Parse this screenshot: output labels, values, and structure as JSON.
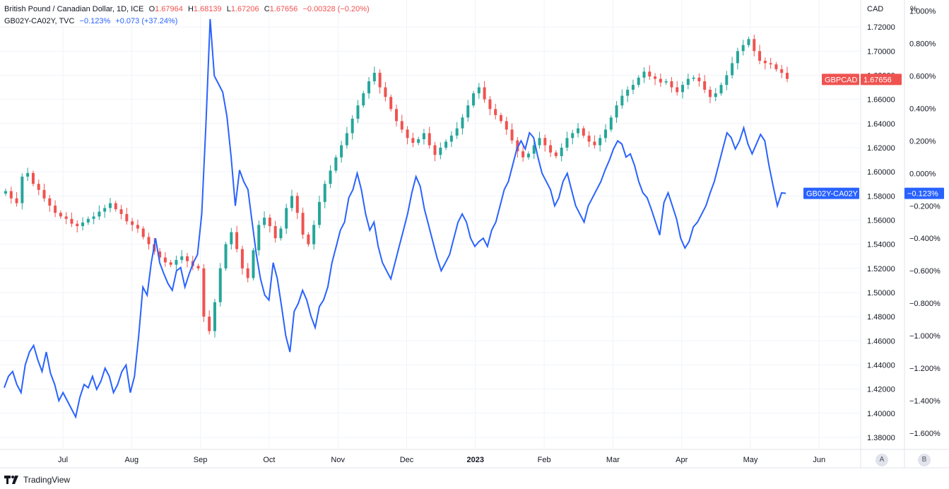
{
  "legend": {
    "main_title": "British Pound / Canadian Dollar, 1D, ICE",
    "open_label": "O",
    "open": "1.67964",
    "high_label": "H",
    "high": "1.68139",
    "low_label": "L",
    "low": "1.67206",
    "close_label": "C",
    "close": "1.67656",
    "change": "−0.00328 (−0.20%)",
    "series2_title": "GB02Y-CA02Y, TVC",
    "series2_value": "−0.123%",
    "series2_change": "+0.073 (+37.24%)"
  },
  "axes": {
    "right_unit": "CAD",
    "far_right_unit": "%",
    "scale_a": "A",
    "scale_b": "B"
  },
  "brand": "TradingView",
  "colors": {
    "up": "#26a69a",
    "down": "#ef5350",
    "spread": "#2962ff",
    "grid": "#f0f3fa"
  },
  "chart_data": {
    "type": "line",
    "x_tick_labels": [
      "Jul",
      "Aug",
      "Sep",
      "Oct",
      "Nov",
      "Dec",
      "2023",
      "Feb",
      "Mar",
      "Apr",
      "May",
      "Jun"
    ],
    "y_ticks_cad": [
      "1.72000",
      "1.70000",
      "1.68000",
      "1.66000",
      "1.64000",
      "1.62000",
      "1.60000",
      "1.58000",
      "1.56000",
      "1.54000",
      "1.52000",
      "1.50000",
      "1.48000",
      "1.46000",
      "1.44000",
      "1.42000",
      "1.40000",
      "1.38000"
    ],
    "y_ticks_pct": [
      "1.000%",
      "0.800%",
      "0.600%",
      "0.400%",
      "0.200%",
      "0.000%",
      "−0.200%",
      "−0.400%",
      "−0.600%",
      "−0.800%",
      "−1.000%",
      "−1.200%",
      "−1.400%",
      "−1.600%"
    ],
    "ylim_cad": [
      1.37,
      1.74
    ],
    "ylim_pct": [
      -1.7,
      1.05
    ],
    "series": [
      {
        "name": "GBPCAD",
        "axis": "CAD",
        "type": "candlestick",
        "last_label": "GBPCAD",
        "last_value": "1.67656",
        "values": [
          1.584,
          1.578,
          1.574,
          1.596,
          1.599,
          1.59,
          1.585,
          1.578,
          1.572,
          1.566,
          1.563,
          1.561,
          1.557,
          1.555,
          1.558,
          1.561,
          1.563,
          1.567,
          1.57,
          1.574,
          1.569,
          1.565,
          1.559,
          1.556,
          1.553,
          1.546,
          1.54,
          1.534,
          1.529,
          1.525,
          1.523,
          1.527,
          1.53,
          1.526,
          1.522,
          1.52,
          1.48,
          1.468,
          1.492,
          1.52,
          1.54,
          1.55,
          1.536,
          1.52,
          1.512,
          1.535,
          1.556,
          1.562,
          1.555,
          1.545,
          1.553,
          1.57,
          1.58,
          1.566,
          1.548,
          1.54,
          1.556,
          1.575,
          1.59,
          1.601,
          1.612,
          1.622,
          1.632,
          1.644,
          1.655,
          1.665,
          1.675,
          1.682,
          1.67,
          1.662,
          1.652,
          1.642,
          1.635,
          1.628,
          1.624,
          1.627,
          1.632,
          1.622,
          1.614,
          1.62,
          1.625,
          1.63,
          1.636,
          1.645,
          1.655,
          1.665,
          1.67,
          1.66,
          1.652,
          1.647,
          1.642,
          1.635,
          1.626,
          1.617,
          1.612,
          1.615,
          1.622,
          1.628,
          1.622,
          1.616,
          1.613,
          1.62,
          1.628,
          1.632,
          1.636,
          1.63,
          1.625,
          1.622,
          1.628,
          1.635,
          1.645,
          1.655,
          1.663,
          1.668,
          1.672,
          1.678,
          1.683,
          1.679,
          1.677,
          1.674,
          1.675,
          1.67,
          1.666,
          1.672,
          1.677,
          1.678,
          1.675,
          1.668,
          1.662,
          1.665,
          1.672,
          1.68,
          1.69,
          1.7,
          1.705,
          1.71,
          1.7,
          1.692,
          1.69,
          1.689,
          1.685,
          1.682,
          1.677
        ]
      },
      {
        "name": "GB02Y-CA02Y",
        "axis": "%",
        "type": "line",
        "last_label": "GB02Y-CA02Y",
        "last_value": "−0.123%",
        "values": [
          -1.32,
          -1.25,
          -1.22,
          -1.3,
          -1.35,
          -1.18,
          -1.1,
          -1.06,
          -1.15,
          -1.22,
          -1.1,
          -1.23,
          -1.3,
          -1.4,
          -1.35,
          -1.4,
          -1.45,
          -1.5,
          -1.38,
          -1.3,
          -1.32,
          -1.25,
          -1.33,
          -1.28,
          -1.2,
          -1.25,
          -1.35,
          -1.3,
          -1.22,
          -1.18,
          -1.35,
          -1.25,
          -1.0,
          -0.7,
          -0.75,
          -0.55,
          -0.4,
          -0.55,
          -0.62,
          -0.68,
          -0.72,
          -0.6,
          -0.58,
          -0.7,
          -0.62,
          -0.55,
          -0.5,
          -0.25,
          0.3,
          0.95,
          0.6,
          0.55,
          0.5,
          0.35,
          0.1,
          -0.2,
          0.02,
          -0.05,
          -0.1,
          -0.3,
          -0.5,
          -0.65,
          -0.75,
          -0.78,
          -0.55,
          -0.65,
          -0.82,
          -1.0,
          -1.1,
          -0.85,
          -0.8,
          -0.72,
          -0.78,
          -0.88,
          -0.95,
          -0.82,
          -0.78,
          -0.7,
          -0.55,
          -0.45,
          -0.35,
          -0.3,
          -0.15,
          -0.1,
          0.0,
          -0.1,
          -0.25,
          -0.35,
          -0.3,
          -0.45,
          -0.55,
          -0.6,
          -0.65,
          -0.55,
          -0.45,
          -0.35,
          -0.25,
          -0.12,
          -0.02,
          -0.08,
          -0.22,
          -0.32,
          -0.42,
          -0.52,
          -0.6,
          -0.55,
          -0.5,
          -0.4,
          -0.3,
          -0.25,
          -0.3,
          -0.4,
          -0.45,
          -0.42,
          -0.4,
          -0.45,
          -0.35,
          -0.3,
          -0.2,
          -0.1,
          -0.05,
          0.05,
          0.15,
          0.2,
          0.15,
          0.25,
          0.22,
          0.1,
          0.0,
          -0.05,
          -0.1,
          -0.2,
          -0.15,
          -0.05,
          0.0,
          -0.1,
          -0.2,
          -0.25,
          -0.3,
          -0.2,
          -0.15,
          -0.1,
          -0.05,
          0.02,
          0.08,
          0.15,
          0.2,
          0.18,
          0.1,
          0.12,
          0.05,
          -0.05,
          -0.12,
          -0.15,
          -0.22,
          -0.3,
          -0.38,
          -0.18,
          -0.12,
          -0.2,
          -0.28,
          -0.4,
          -0.46,
          -0.42,
          -0.33,
          -0.3,
          -0.25,
          -0.2,
          -0.12,
          -0.05,
          0.05,
          0.15,
          0.25,
          0.22,
          0.15,
          0.2,
          0.28,
          0.18,
          0.12,
          0.18,
          0.24,
          0.2,
          0.05,
          -0.08,
          -0.2,
          -0.12,
          -0.123
        ]
      }
    ],
    "grid": true,
    "legend": "top-left"
  }
}
